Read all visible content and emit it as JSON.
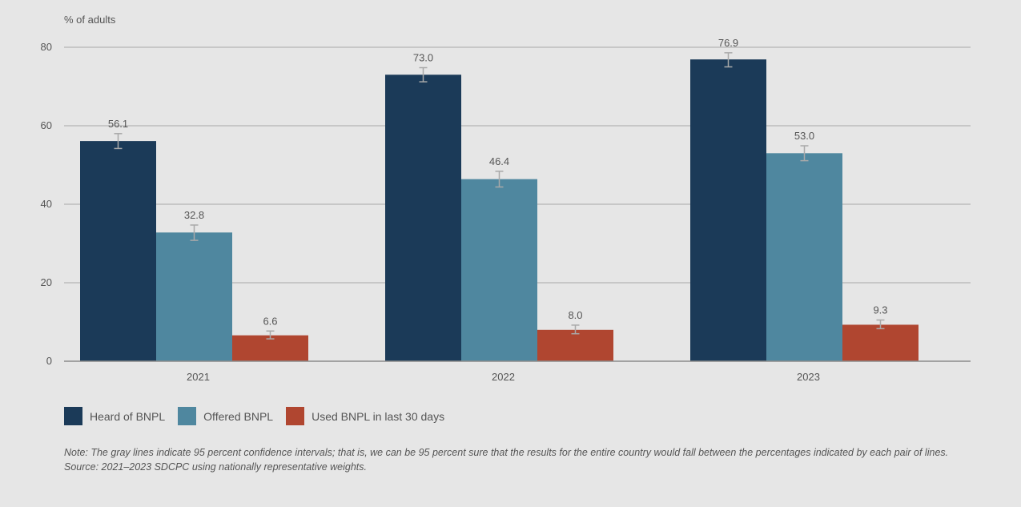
{
  "chart_data": {
    "type": "bar",
    "ylabel": "% of adults",
    "categories": [
      "2021",
      "2022",
      "2023"
    ],
    "ylim": [
      0,
      80
    ],
    "yticks": [
      0,
      20,
      40,
      60,
      80
    ],
    "grid": true,
    "legend_placement": "bottom-left",
    "series": [
      {
        "name": "Heard of BNPL",
        "color": "#1b3a58",
        "values": [
          56.1,
          73.0,
          76.9
        ],
        "labels": [
          "56.1",
          "73.0",
          "76.9"
        ],
        "ci_low": [
          54.2,
          71.2,
          75.0
        ],
        "ci_high": [
          58.0,
          74.8,
          78.6
        ]
      },
      {
        "name": "Offered BNPL",
        "color": "#4f879f",
        "values": [
          32.8,
          46.4,
          53.0
        ],
        "labels": [
          "32.8",
          "46.4",
          "53.0"
        ],
        "ci_low": [
          30.8,
          44.4,
          51.1
        ],
        "ci_high": [
          34.7,
          48.4,
          54.9
        ]
      },
      {
        "name": "Used BNPL in last 30 days",
        "color": "#b04630",
        "values": [
          6.6,
          8.0,
          9.3
        ],
        "labels": [
          "6.6",
          "8.0",
          "9.3"
        ],
        "ci_low": [
          5.7,
          7.0,
          8.3
        ],
        "ci_high": [
          7.7,
          9.2,
          10.5
        ]
      }
    ]
  },
  "notes": {
    "note": "Note: The gray lines indicate 95 percent confidence intervals; that is, we can be 95 percent sure that the results for the entire country would fall between the percentages indicated by each pair of lines.",
    "source": "Source: 2021–2023 SDCPC using nationally representative weights."
  }
}
